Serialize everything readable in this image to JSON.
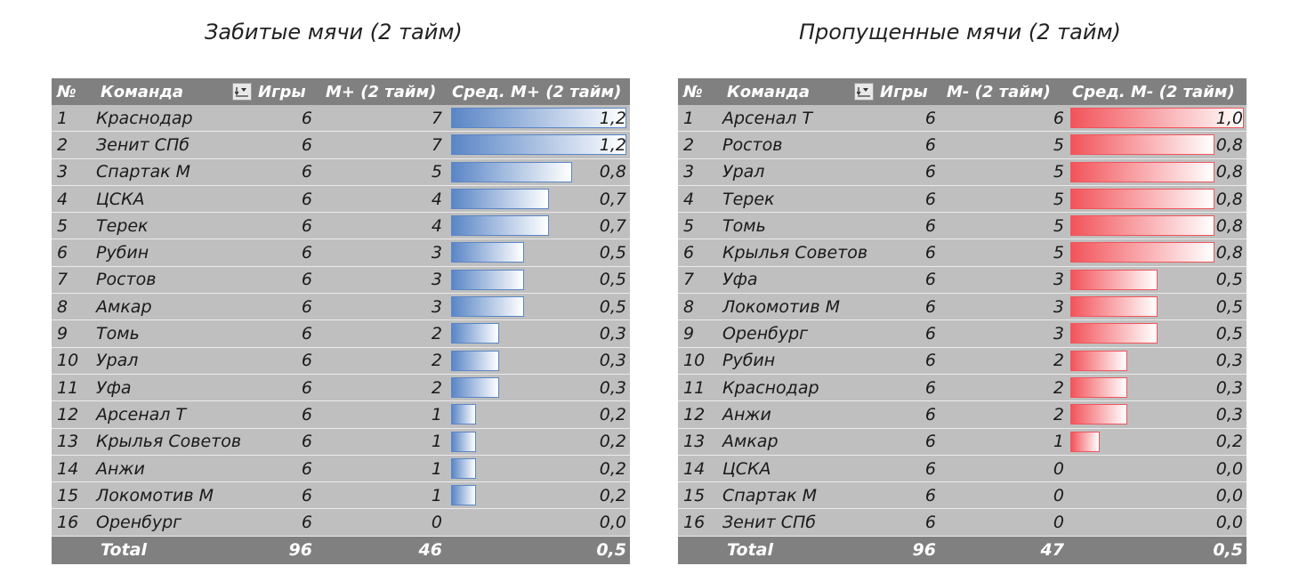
{
  "left": {
    "title": "Забитые мячи (2 тайм)",
    "headers": {
      "num": "№",
      "team": "Команда",
      "games": "Игры",
      "goals": "М+ (2 тайм)",
      "avg": "Сред. М+ (2 тайм)"
    },
    "bar_color": "#5a86c6",
    "bar_max": 1.2,
    "rows": [
      {
        "num": "1",
        "team": "Краснодар",
        "games": "6",
        "goals": "7",
        "avg": "1,2",
        "avg_value": 1.2
      },
      {
        "num": "2",
        "team": "Зенит СПб",
        "games": "6",
        "goals": "7",
        "avg": "1,2",
        "avg_value": 1.2
      },
      {
        "num": "3",
        "team": "Спартак М",
        "games": "6",
        "goals": "5",
        "avg": "0,8",
        "avg_value": 0.83
      },
      {
        "num": "4",
        "team": "ЦСКА",
        "games": "6",
        "goals": "4",
        "avg": "0,7",
        "avg_value": 0.67
      },
      {
        "num": "5",
        "team": "Терек",
        "games": "6",
        "goals": "4",
        "avg": "0,7",
        "avg_value": 0.67
      },
      {
        "num": "6",
        "team": "Рубин",
        "games": "6",
        "goals": "3",
        "avg": "0,5",
        "avg_value": 0.5
      },
      {
        "num": "7",
        "team": "Ростов",
        "games": "6",
        "goals": "3",
        "avg": "0,5",
        "avg_value": 0.5
      },
      {
        "num": "8",
        "team": "Амкар",
        "games": "6",
        "goals": "3",
        "avg": "0,5",
        "avg_value": 0.5
      },
      {
        "num": "9",
        "team": "Томь",
        "games": "6",
        "goals": "2",
        "avg": "0,3",
        "avg_value": 0.33
      },
      {
        "num": "10",
        "team": "Урал",
        "games": "6",
        "goals": "2",
        "avg": "0,3",
        "avg_value": 0.33
      },
      {
        "num": "11",
        "team": "Уфа",
        "games": "6",
        "goals": "2",
        "avg": "0,3",
        "avg_value": 0.33
      },
      {
        "num": "12",
        "team": "Арсенал Т",
        "games": "6",
        "goals": "1",
        "avg": "0,2",
        "avg_value": 0.17
      },
      {
        "num": "13",
        "team": "Крылья Советов",
        "games": "6",
        "goals": "1",
        "avg": "0,2",
        "avg_value": 0.17
      },
      {
        "num": "14",
        "team": "Анжи",
        "games": "6",
        "goals": "1",
        "avg": "0,2",
        "avg_value": 0.17
      },
      {
        "num": "15",
        "team": "Локомотив М",
        "games": "6",
        "goals": "1",
        "avg": "0,2",
        "avg_value": 0.17
      },
      {
        "num": "16",
        "team": "Оренбург",
        "games": "6",
        "goals": "0",
        "avg": "0,0",
        "avg_value": 0
      }
    ],
    "total": {
      "label": "Total",
      "games": "96",
      "goals": "46",
      "avg": "0,5"
    }
  },
  "right": {
    "title": "Пропущенные мячи (2 тайм)",
    "headers": {
      "num": "№",
      "team": "Команда",
      "games": "Игры",
      "goals": "М- (2 тайм)",
      "avg": "Сред. М- (2 тайм)"
    },
    "bar_color": "#f2545b",
    "bar_max": 1.0,
    "rows": [
      {
        "num": "1",
        "team": "Арсенал Т",
        "games": "6",
        "goals": "6",
        "avg": "1,0",
        "avg_value": 1.0
      },
      {
        "num": "2",
        "team": "Ростов",
        "games": "6",
        "goals": "5",
        "avg": "0,8",
        "avg_value": 0.83
      },
      {
        "num": "3",
        "team": "Урал",
        "games": "6",
        "goals": "5",
        "avg": "0,8",
        "avg_value": 0.83
      },
      {
        "num": "4",
        "team": "Терек",
        "games": "6",
        "goals": "5",
        "avg": "0,8",
        "avg_value": 0.83
      },
      {
        "num": "5",
        "team": "Томь",
        "games": "6",
        "goals": "5",
        "avg": "0,8",
        "avg_value": 0.83
      },
      {
        "num": "6",
        "team": "Крылья Советов",
        "games": "6",
        "goals": "5",
        "avg": "0,8",
        "avg_value": 0.83
      },
      {
        "num": "7",
        "team": "Уфа",
        "games": "6",
        "goals": "3",
        "avg": "0,5",
        "avg_value": 0.5
      },
      {
        "num": "8",
        "team": "Локомотив М",
        "games": "6",
        "goals": "3",
        "avg": "0,5",
        "avg_value": 0.5
      },
      {
        "num": "9",
        "team": "Оренбург",
        "games": "6",
        "goals": "3",
        "avg": "0,5",
        "avg_value": 0.5
      },
      {
        "num": "10",
        "team": "Рубин",
        "games": "6",
        "goals": "2",
        "avg": "0,3",
        "avg_value": 0.33
      },
      {
        "num": "11",
        "team": "Краснодар",
        "games": "6",
        "goals": "2",
        "avg": "0,3",
        "avg_value": 0.33
      },
      {
        "num": "12",
        "team": "Анжи",
        "games": "6",
        "goals": "2",
        "avg": "0,3",
        "avg_value": 0.33
      },
      {
        "num": "13",
        "team": "Амкар",
        "games": "6",
        "goals": "1",
        "avg": "0,2",
        "avg_value": 0.17
      },
      {
        "num": "14",
        "team": "ЦСКА",
        "games": "6",
        "goals": "0",
        "avg": "0,0",
        "avg_value": 0
      },
      {
        "num": "15",
        "team": "Спартак М",
        "games": "6",
        "goals": "0",
        "avg": "0,0",
        "avg_value": 0
      },
      {
        "num": "16",
        "team": "Зенит СПб",
        "games": "6",
        "goals": "0",
        "avg": "0,0",
        "avg_value": 0
      }
    ],
    "total": {
      "label": "Total",
      "games": "96",
      "goals": "47",
      "avg": "0,5"
    }
  },
  "filter_icon": "sort-filter-icon"
}
